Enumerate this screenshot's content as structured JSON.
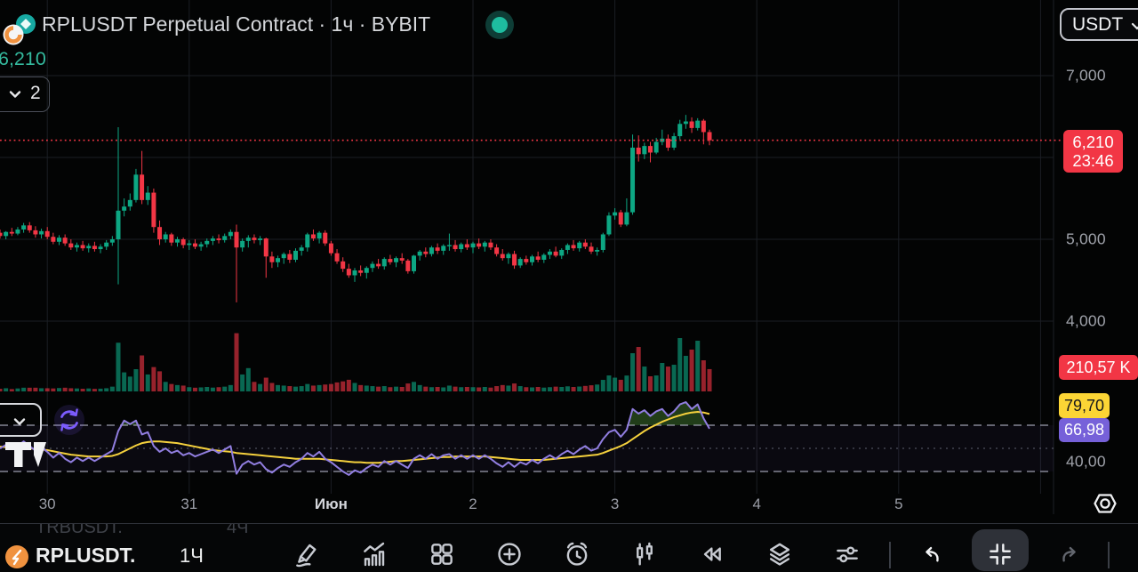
{
  "header": {
    "title": "RPLUSDT Perpetual Contract · 1ч · BYBIT",
    "last_price": "6,210",
    "indicators_collapsed_count": "2",
    "currency_button": "USDT"
  },
  "price_axis": {
    "gridline_labels": [
      {
        "text": "7,000",
        "price": 7000
      },
      {
        "text": "5,000",
        "price": 5000
      },
      {
        "text": "4,000",
        "price": 4000
      }
    ],
    "price_badge": {
      "price": "6,210",
      "countdown": "23:46"
    },
    "volume_badge": "210,57 K",
    "rsi_ma_badge": "79,70",
    "rsi_badge": "66,98",
    "rsi_level_label": "40,00"
  },
  "time_axis": {
    "labels": [
      {
        "text": "30",
        "day_index": 0,
        "emphasis": false
      },
      {
        "text": "31",
        "day_index": 1,
        "emphasis": false
      },
      {
        "text": "Июн",
        "day_index": 2,
        "emphasis": true
      },
      {
        "text": "2",
        "day_index": 3,
        "emphasis": false
      },
      {
        "text": "3",
        "day_index": 4,
        "emphasis": false
      },
      {
        "text": "4",
        "day_index": 5,
        "emphasis": false
      },
      {
        "text": "5",
        "day_index": 6,
        "emphasis": false
      }
    ]
  },
  "toolbar": {
    "symbol": "RPLUSDT.",
    "interval": "1Ч",
    "icons": [
      "draw-pencil",
      "indicators",
      "layouts-grid",
      "add-circle",
      "alerts-clock",
      "chart-type-candles",
      "replay",
      "layers",
      "settings-sliders",
      "undo",
      "collapse-panel",
      "redo"
    ]
  },
  "ghost_row": {
    "symbol": "TRBUSDT.",
    "interval": "4Ч"
  },
  "colors": {
    "up": "#0DA783",
    "down": "#F23645",
    "accent_red": "#F23645",
    "rsi_line": "#917EE0",
    "rsi_ma_line": "#F5D13D",
    "badge_yellow": "#FCD535",
    "badge_purple": "#7661D9",
    "price_green": "#34BA9E"
  },
  "chart_data": {
    "type": "candlestick+volume+rsi",
    "symbol": "RPLUSDT",
    "interval": "1h",
    "exchange": "BYBIT",
    "last_price": 6210,
    "countdown": "23:46",
    "price_gridlines": [
      7000,
      6000,
      5000,
      4000
    ],
    "rsi_levels": [
      70,
      50,
      30
    ],
    "rsi_level_labeled": 40,
    "last_volume_k": 210.57,
    "candles": [
      [
        5080,
        5120,
        5010,
        5040
      ],
      [
        5040,
        5100,
        5000,
        5090
      ],
      [
        5090,
        5140,
        5040,
        5070
      ],
      [
        5070,
        5150,
        5050,
        5120
      ],
      [
        5120,
        5200,
        5080,
        5170
      ],
      [
        5170,
        5210,
        5080,
        5110
      ],
      [
        5110,
        5160,
        5020,
        5060
      ],
      [
        5060,
        5130,
        5010,
        5100
      ],
      [
        5100,
        5150,
        5000,
        5030
      ],
      [
        5030,
        5080,
        4940,
        4970
      ],
      [
        4970,
        5050,
        4930,
        5020
      ],
      [
        5020,
        5060,
        4920,
        4950
      ],
      [
        4950,
        5000,
        4870,
        4900
      ],
      [
        4900,
        4960,
        4850,
        4930
      ],
      [
        4930,
        4980,
        4860,
        4890
      ],
      [
        4890,
        4950,
        4840,
        4920
      ],
      [
        4920,
        4970,
        4850,
        4880
      ],
      [
        4880,
        4940,
        4830,
        4910
      ],
      [
        4910,
        4990,
        4870,
        4960
      ],
      [
        4960,
        5040,
        4920,
        5000
      ],
      [
        5000,
        6370,
        4450,
        5350
      ],
      [
        5350,
        5500,
        5280,
        5400
      ],
      [
        5400,
        5560,
        5350,
        5480
      ],
      [
        5480,
        5860,
        5450,
        5790
      ],
      [
        5790,
        6080,
        5430,
        5480
      ],
      [
        5480,
        5650,
        5420,
        5570
      ],
      [
        5570,
        5620,
        5080,
        5150
      ],
      [
        5150,
        5230,
        4930,
        5000
      ],
      [
        5000,
        5090,
        4960,
        5060
      ],
      [
        5060,
        5080,
        4920,
        4960
      ],
      [
        4960,
        5030,
        4910,
        5000
      ],
      [
        5000,
        5020,
        4890,
        4930
      ],
      [
        4930,
        4990,
        4870,
        4950
      ],
      [
        4950,
        5000,
        4880,
        4910
      ],
      [
        4910,
        4970,
        4860,
        4940
      ],
      [
        4940,
        5010,
        4900,
        4980
      ],
      [
        4980,
        5040,
        4930,
        5010
      ],
      [
        5010,
        5060,
        4950,
        4990
      ],
      [
        4990,
        5070,
        4960,
        5040
      ],
      [
        5040,
        5120,
        5000,
        5090
      ],
      [
        5090,
        5180,
        4230,
        4900
      ],
      [
        4900,
        5010,
        4850,
        4980
      ],
      [
        4980,
        5050,
        4900,
        5020
      ],
      [
        5020,
        5060,
        4950,
        4990
      ],
      [
        4990,
        5040,
        4930,
        5010
      ],
      [
        5010,
        5020,
        4530,
        4790
      ],
      [
        4790,
        4850,
        4650,
        4720
      ],
      [
        4720,
        4800,
        4660,
        4770
      ],
      [
        4770,
        4840,
        4700,
        4820
      ],
      [
        4820,
        4870,
        4710,
        4750
      ],
      [
        4750,
        4890,
        4720,
        4860
      ],
      [
        4860,
        4930,
        4800,
        4900
      ],
      [
        4900,
        5080,
        4850,
        5060
      ],
      [
        5060,
        5120,
        4980,
        5010
      ],
      [
        5010,
        5100,
        4950,
        5080
      ],
      [
        5080,
        5110,
        4920,
        4950
      ],
      [
        4950,
        4980,
        4800,
        4830
      ],
      [
        4830,
        4880,
        4700,
        4730
      ],
      [
        4730,
        4780,
        4600,
        4640
      ],
      [
        4640,
        4700,
        4530,
        4560
      ],
      [
        4560,
        4650,
        4480,
        4620
      ],
      [
        4620,
        4680,
        4550,
        4590
      ],
      [
        4590,
        4670,
        4520,
        4650
      ],
      [
        4650,
        4730,
        4600,
        4700
      ],
      [
        4700,
        4760,
        4640,
        4670
      ],
      [
        4670,
        4780,
        4630,
        4760
      ],
      [
        4760,
        4810,
        4690,
        4720
      ],
      [
        4720,
        4790,
        4660,
        4770
      ],
      [
        4770,
        4830,
        4700,
        4740
      ],
      [
        4740,
        4760,
        4580,
        4610
      ],
      [
        4610,
        4810,
        4580,
        4800
      ],
      [
        4800,
        4870,
        4740,
        4850
      ],
      [
        4850,
        4900,
        4780,
        4820
      ],
      [
        4820,
        4920,
        4790,
        4900
      ],
      [
        4900,
        4950,
        4820,
        4860
      ],
      [
        4860,
        4940,
        4810,
        4920
      ],
      [
        4920,
        5070,
        4860,
        4930
      ],
      [
        4930,
        4990,
        4850,
        4880
      ],
      [
        4880,
        4960,
        4840,
        4940
      ],
      [
        4940,
        5000,
        4870,
        4900
      ],
      [
        4900,
        4970,
        4830,
        4950
      ],
      [
        4950,
        5010,
        4880,
        4910
      ],
      [
        4910,
        4980,
        4850,
        4960
      ],
      [
        4960,
        5000,
        4870,
        4900
      ],
      [
        4900,
        4940,
        4790,
        4820
      ],
      [
        4820,
        4880,
        4740,
        4770
      ],
      [
        4770,
        4840,
        4700,
        4820
      ],
      [
        4820,
        4860,
        4640,
        4680
      ],
      [
        4680,
        4780,
        4650,
        4760
      ],
      [
        4760,
        4800,
        4690,
        4720
      ],
      [
        4720,
        4810,
        4680,
        4790
      ],
      [
        4790,
        4850,
        4720,
        4750
      ],
      [
        4750,
        4830,
        4710,
        4810
      ],
      [
        4810,
        4880,
        4760,
        4850
      ],
      [
        4850,
        4910,
        4780,
        4800
      ],
      [
        4800,
        4890,
        4760,
        4870
      ],
      [
        4870,
        4950,
        4820,
        4930
      ],
      [
        4930,
        4990,
        4860,
        4890
      ],
      [
        4890,
        4980,
        4850,
        4960
      ],
      [
        4960,
        5000,
        4880,
        4910
      ],
      [
        4910,
        4960,
        4820,
        4850
      ],
      [
        4850,
        4900,
        4800,
        4870
      ],
      [
        4870,
        5080,
        4840,
        5060
      ],
      [
        5060,
        5330,
        5040,
        5290
      ],
      [
        5290,
        5380,
        5240,
        5330
      ],
      [
        5330,
        5360,
        5150,
        5180
      ],
      [
        5180,
        5500,
        5160,
        5330
      ],
      [
        5330,
        6280,
        5300,
        6120
      ],
      [
        6120,
        6270,
        5950,
        6040
      ],
      [
        6040,
        6180,
        5980,
        6140
      ],
      [
        6140,
        6190,
        5940,
        6060
      ],
      [
        6060,
        6240,
        6040,
        6190
      ],
      [
        6190,
        6340,
        6150,
        6230
      ],
      [
        6230,
        6280,
        6080,
        6120
      ],
      [
        6120,
        6300,
        6090,
        6260
      ],
      [
        6260,
        6460,
        6220,
        6410
      ],
      [
        6410,
        6520,
        6350,
        6440
      ],
      [
        6440,
        6490,
        6300,
        6360
      ],
      [
        6360,
        6480,
        6330,
        6450
      ],
      [
        6450,
        6470,
        6160,
        6310
      ],
      [
        6310,
        6340,
        6150,
        6210
      ]
    ],
    "volumes_k": [
      25,
      30,
      22,
      28,
      35,
      35,
      35,
      30,
      30,
      28,
      32,
      35,
      30,
      28,
      25,
      28,
      24,
      26,
      30,
      45,
      460,
      180,
      140,
      210,
      340,
      160,
      230,
      190,
      90,
      70,
      60,
      55,
      40,
      35,
      38,
      42,
      36,
      40,
      45,
      60,
      550,
      160,
      220,
      90,
      70,
      130,
      80,
      60,
      55,
      50,
      45,
      50,
      70,
      55,
      60,
      65,
      70,
      85,
      95,
      110,
      80,
      60,
      55,
      50,
      45,
      50,
      40,
      45,
      42,
      75,
      90,
      60,
      45,
      40,
      42,
      38,
      55,
      45,
      40,
      42,
      40,
      38,
      42,
      36,
      50,
      60,
      55,
      75,
      50,
      40,
      38,
      42,
      36,
      40,
      45,
      42,
      48,
      42,
      46,
      52,
      58,
      65,
      109,
      151,
      130,
      110,
      150,
      361,
      420,
      235,
      143,
      151,
      269,
      235,
      252,
      504,
      336,
      395,
      479,
      294,
      210.57
    ],
    "rsi": [
      50,
      53,
      50,
      52,
      56,
      52,
      48,
      51,
      47,
      42,
      46,
      41,
      38,
      42,
      39,
      42,
      39,
      42,
      45,
      48,
      65,
      74,
      71,
      74,
      62,
      64,
      52,
      47,
      50,
      46,
      48,
      44,
      46,
      43,
      45,
      47,
      49,
      46,
      49,
      52,
      28,
      36,
      39,
      36,
      38,
      32,
      29,
      33,
      36,
      34,
      38,
      41,
      46,
      43,
      47,
      41,
      38,
      34,
      30,
      27,
      31,
      29,
      33,
      36,
      34,
      39,
      36,
      39,
      36,
      33,
      41,
      44,
      41,
      45,
      41,
      44,
      45,
      41,
      44,
      41,
      44,
      41,
      44,
      41,
      37,
      34,
      38,
      34,
      38,
      36,
      40,
      37,
      41,
      44,
      41,
      45,
      48,
      45,
      49,
      52,
      48,
      50,
      58,
      64,
      66,
      60,
      66,
      84,
      80,
      83,
      78,
      82,
      84,
      78,
      82,
      88,
      90,
      84,
      88,
      76,
      67
    ],
    "rsi_ma": [
      51.5,
      51,
      51,
      50.5,
      50,
      50,
      49.5,
      49,
      48.5,
      47.5,
      46.5,
      45.5,
      44.5,
      44,
      43.5,
      43,
      43,
      43,
      43,
      43.5,
      45,
      47.5,
      50,
      52.5,
      54.5,
      55.5,
      56,
      56,
      55.5,
      55,
      54.5,
      53.5,
      52.5,
      51.5,
      50.5,
      49.5,
      48.5,
      48,
      47.5,
      47,
      46,
      45.5,
      45,
      44.5,
      44,
      43.5,
      43,
      42.5,
      42,
      41.5,
      41,
      41,
      41,
      41,
      41,
      40.5,
      40,
      39.5,
      39,
      38.5,
      38,
      38,
      37.5,
      37.5,
      37.5,
      38,
      38.5,
      39,
      39,
      39.5,
      40,
      40.5,
      41,
      41.5,
      42,
      42.5,
      42.5,
      43,
      43,
      43,
      43,
      43,
      43,
      42.5,
      42,
      41.5,
      41,
      40.5,
      40,
      40,
      40,
      40,
      40,
      40.5,
      41,
      41.5,
      42,
      42.5,
      43,
      43.5,
      44,
      44.5,
      46,
      48,
      50,
      52,
      54.5,
      58,
      61.5,
      65,
      68,
      70.5,
      73,
      75,
      77,
      78.5,
      80,
      81,
      81.5,
      81,
      79.7
    ]
  }
}
